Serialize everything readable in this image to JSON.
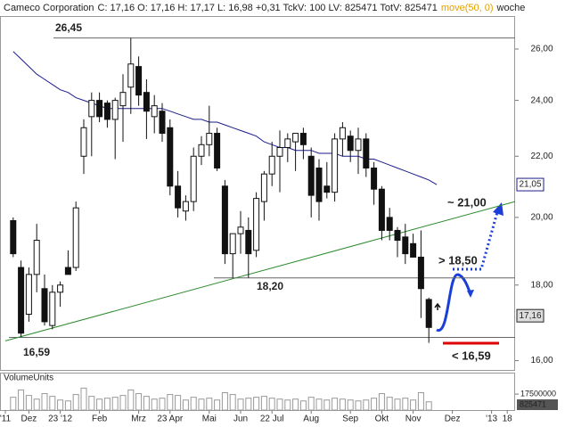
{
  "chart_data": {
    "type": "candlestick",
    "title": "Cameco Corporation",
    "stats": "C: 17,16 O: 17,16 H: 17,17 L: 16,98 +0,31 TckV: 100 LV: 825471 TotV: 825471",
    "indicator": "move(50, 0)",
    "interval": "woche",
    "log_scale": true,
    "ylim": [
      15.77,
      27.37
    ],
    "yticks": [
      {
        "value": 16,
        "label": "16,00"
      },
      {
        "value": 18,
        "label": "18,00"
      },
      {
        "value": 20,
        "label": "20,00"
      },
      {
        "value": 22,
        "label": "22,00"
      },
      {
        "value": 24,
        "label": "24,00"
      },
      {
        "value": 26,
        "label": "26,00"
      }
    ],
    "categories": [
      "'11",
      null,
      null,
      "Dez",
      null,
      null,
      null,
      "23 '12",
      null,
      null,
      null,
      null,
      "Feb",
      null,
      null,
      null,
      null,
      "Mrz",
      null,
      null,
      null,
      "23 Apr",
      null,
      null,
      null,
      null,
      "Mai",
      null,
      null,
      null,
      "Jun",
      null,
      null,
      null,
      "22 Jul",
      null,
      null,
      null,
      null,
      "Aug",
      null,
      null,
      null,
      null,
      "Sep",
      null,
      null,
      null,
      "Okt",
      null,
      null,
      null,
      "Nov",
      null,
      null,
      null,
      null,
      "Dez",
      null,
      null,
      null,
      null,
      "'13",
      null,
      "18",
      null
    ],
    "open": [
      null,
      19.9,
      18.5,
      17.2,
      18.3,
      17.9,
      16.9,
      17.8,
      18.5,
      18.5,
      22.0,
      23.4,
      24.0,
      23.9,
      23.3,
      23.8,
      24.5,
      25.3,
      24.3,
      23.4,
      23.6,
      23.0,
      21.0,
      20.2,
      20.5,
      22.0,
      22.4,
      22.8,
      21.0,
      18.9,
      19.5,
      19.6,
      19.0,
      20.5,
      21.4,
      22.0,
      22.3,
      22.5,
      22.8,
      22.0,
      21.6,
      21.0,
      20.8,
      22.6,
      22.7,
      22.2,
      22.6,
      21.6,
      20.9,
      20.0,
      19.6,
      19.4,
      19.2,
      18.8,
      17.6,
      null,
      null,
      null,
      null,
      null,
      null,
      null,
      null,
      null,
      null,
      null
    ],
    "high": [
      null,
      20.0,
      18.7,
      18.5,
      19.8,
      18.3,
      18.0,
      18.1,
      19.0,
      20.5,
      23.3,
      24.3,
      24.3,
      24.0,
      24.1,
      25.0,
      26.45,
      25.7,
      24.8,
      24.2,
      23.9,
      23.3,
      21.5,
      20.7,
      22.3,
      22.7,
      23.8,
      23.0,
      21.2,
      19.5,
      20.2,
      20.0,
      20.8,
      21.5,
      22.5,
      22.9,
      22.8,
      22.8,
      23.0,
      22.3,
      21.9,
      21.8,
      22.8,
      23.2,
      22.9,
      23.0,
      22.8,
      21.8,
      21.0,
      20.3,
      19.7,
      19.8,
      19.5,
      19.6,
      17.65,
      null,
      null,
      null,
      null,
      null,
      null,
      null,
      null,
      null,
      null,
      null
    ],
    "low": [
      null,
      18.8,
      16.6,
      17.0,
      17.8,
      16.9,
      16.8,
      17.4,
      18.3,
      18.4,
      21.4,
      22.0,
      23.2,
      23.0,
      21.9,
      22.5,
      23.5,
      23.8,
      22.6,
      22.8,
      22.5,
      20.7,
      20.0,
      19.9,
      20.2,
      21.7,
      22.0,
      21.5,
      18.6,
      18.2,
      18.9,
      18.2,
      18.8,
      19.9,
      21.0,
      20.8,
      21.8,
      21.5,
      21.9,
      20.0,
      19.9,
      20.6,
      20.5,
      22.0,
      21.8,
      21.4,
      21.3,
      20.4,
      19.3,
      19.3,
      18.8,
      18.6,
      18.8,
      17.1,
      16.45,
      null,
      null,
      null,
      null,
      null,
      null,
      null,
      null,
      null,
      null,
      null
    ],
    "close": [
      null,
      18.9,
      16.7,
      18.3,
      19.3,
      17.0,
      17.8,
      18.0,
      18.3,
      20.3,
      23.0,
      24.0,
      23.4,
      23.3,
      24.0,
      24.3,
      25.4,
      24.2,
      23.6,
      23.8,
      22.8,
      21.0,
      20.3,
      20.5,
      22.0,
      22.4,
      22.8,
      21.6,
      18.9,
      19.5,
      19.7,
      18.9,
      20.6,
      21.4,
      22.0,
      22.3,
      22.6,
      22.8,
      22.4,
      20.7,
      20.5,
      20.8,
      22.6,
      23.0,
      22.2,
      22.6,
      21.6,
      20.9,
      19.6,
      19.6,
      19.3,
      18.9,
      18.8,
      17.9,
      16.85,
      null,
      null,
      null,
      null,
      null,
      null,
      null,
      null,
      null,
      null,
      null
    ],
    "series": [
      {
        "color": "#1c1c8c",
        "values": [
          null,
          25.9,
          25.6,
          25.3,
          25.0,
          24.8,
          24.6,
          24.4,
          24.3,
          24.1,
          24.0,
          23.9,
          23.8,
          23.7,
          23.7,
          23.7,
          23.7,
          23.7,
          23.7,
          23.7,
          23.7,
          23.6,
          23.5,
          23.4,
          23.3,
          23.3,
          23.2,
          23.2,
          23.1,
          23.0,
          22.9,
          22.8,
          22.7,
          22.5,
          22.4,
          22.3,
          22.3,
          22.2,
          22.2,
          22.2,
          22.1,
          22.1,
          22.1,
          22.0,
          22.0,
          22.0,
          21.9,
          21.9,
          21.8,
          21.7,
          21.6,
          21.5,
          21.4,
          21.3,
          21.2,
          21.05,
          null,
          null,
          null,
          null,
          null,
          null,
          null,
          null,
          null,
          null
        ]
      }
    ],
    "trendline": {
      "color": "#2e8b2e",
      "x": [
        0,
        65
      ],
      "values": [
        16.5,
        20.5
      ]
    },
    "levels": [
      {
        "value": 26.45,
        "label": "26,45"
      },
      {
        "value": 18.2,
        "label": "18,20"
      },
      {
        "value": 16.59,
        "label": "16,59"
      }
    ],
    "price_tags": [
      {
        "value": 21.05,
        "label": "21,05",
        "color": "#1c1c8c"
      },
      {
        "value": 17.16,
        "label": "17,16",
        "color": "#222"
      }
    ],
    "annotations": [
      "~ 21,00",
      "> 18,50",
      "< 16,59"
    ],
    "volume_title": "VolumeUnits",
    "volume": [
      null,
      14000000,
      22000000,
      16000000,
      12000000,
      18000000,
      15000000,
      11000000,
      10000000,
      17000000,
      24000000,
      15000000,
      12000000,
      13000000,
      14000000,
      16000000,
      22000000,
      18000000,
      15000000,
      12000000,
      13000000,
      17000000,
      16000000,
      11000000,
      14000000,
      12000000,
      13000000,
      11000000,
      19000000,
      17000000,
      12000000,
      13000000,
      14000000,
      15000000,
      13000000,
      12000000,
      11000000,
      12000000,
      10000000,
      14000000,
      12000000,
      11000000,
      13000000,
      12000000,
      11000000,
      10000000,
      11000000,
      13000000,
      18000000,
      14000000,
      12000000,
      13000000,
      11000000,
      19000000,
      9000000,
      null,
      null,
      null,
      null,
      null,
      null,
      null,
      null,
      null,
      null,
      null
    ],
    "volume_ylim": [
      0,
      40000000
    ],
    "volume_yticks": [
      17500000
    ],
    "volume_last": 825471
  }
}
